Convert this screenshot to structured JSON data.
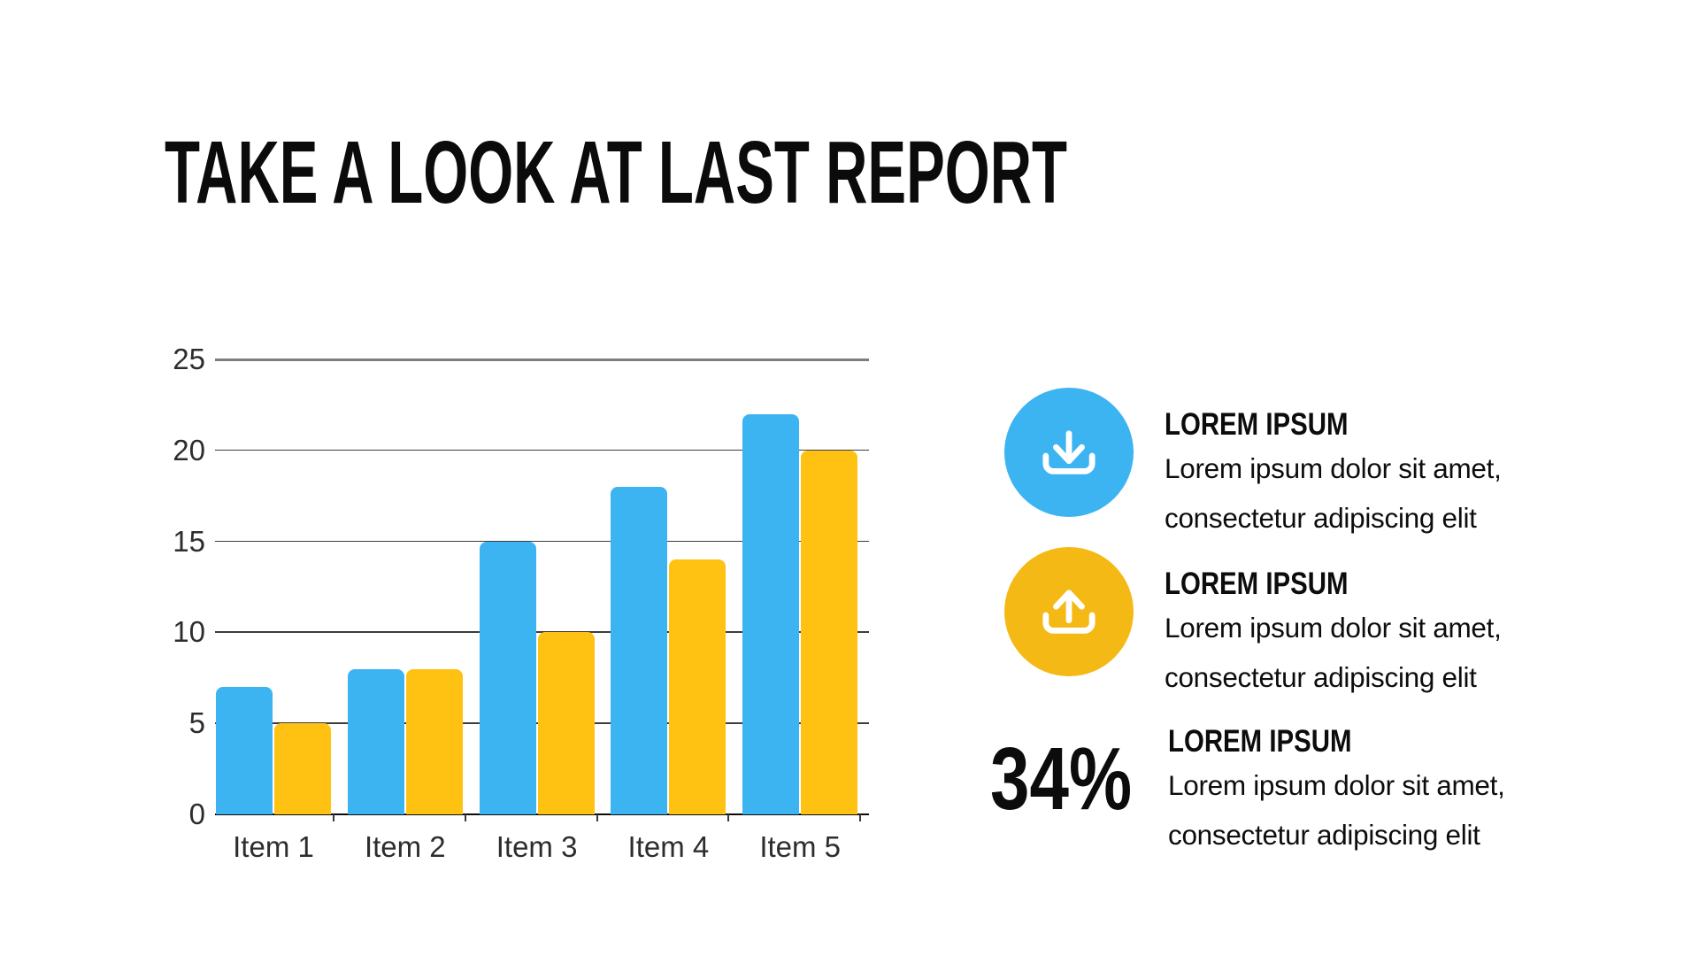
{
  "title": "TAKE A LOOK AT LAST REPORT",
  "chart_data": {
    "type": "bar",
    "title": "",
    "categories": [
      "Item 1",
      "Item 2",
      "Item 3",
      "Item 4",
      "Item 5"
    ],
    "series": [
      {
        "name": "blue",
        "color": "#3CB4F1",
        "values": [
          7,
          8,
          15,
          18,
          22
        ]
      },
      {
        "name": "yellow",
        "color": "#FFC112",
        "values": [
          5,
          8,
          10,
          14,
          20
        ]
      }
    ],
    "xlabel": "",
    "ylabel": "",
    "ylim": [
      0,
      25
    ],
    "yticks": [
      0,
      5,
      10,
      15,
      20,
      25
    ],
    "grid": true,
    "legend": "none"
  },
  "features": [
    {
      "icon": "download-icon",
      "icon_bg": "#3CB4F1",
      "heading": "LOREM IPSUM",
      "line1": "Lorem ipsum dolor sit amet,",
      "line2": "consectetur adipiscing elit"
    },
    {
      "icon": "upload-icon",
      "icon_bg": "#F5B915",
      "heading": "LOREM IPSUM",
      "line1": "Lorem ipsum dolor sit amet,",
      "line2": "consectetur adipiscing elit"
    },
    {
      "stat": "34%",
      "heading": "LOREM IPSUM",
      "line1": "Lorem ipsum dolor sit amet,",
      "line2": "consectetur adipiscing elit"
    }
  ]
}
